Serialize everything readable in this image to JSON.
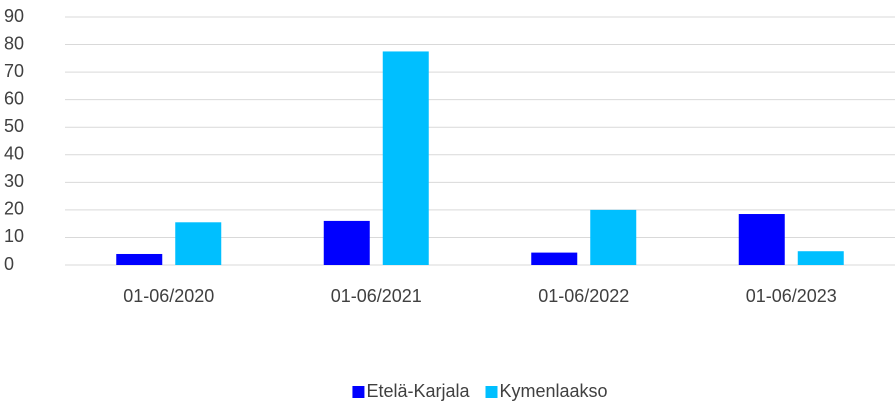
{
  "chart_data": {
    "type": "bar",
    "categories": [
      "01-06/2020",
      "01-06/2021",
      "01-06/2022",
      "01-06/2023"
    ],
    "series": [
      {
        "name": "Etelä-Karjala",
        "color": "#0000ff",
        "values": [
          4,
          16,
          4.5,
          18.5
        ]
      },
      {
        "name": "Kymenlaakso",
        "color": "#00bfff",
        "values": [
          15.5,
          77.5,
          20,
          5
        ]
      }
    ],
    "ylim": [
      0,
      90
    ],
    "yticks": [
      0,
      10,
      20,
      30,
      40,
      50,
      60,
      70,
      80,
      90
    ],
    "grid": true,
    "legend": "bottom"
  }
}
